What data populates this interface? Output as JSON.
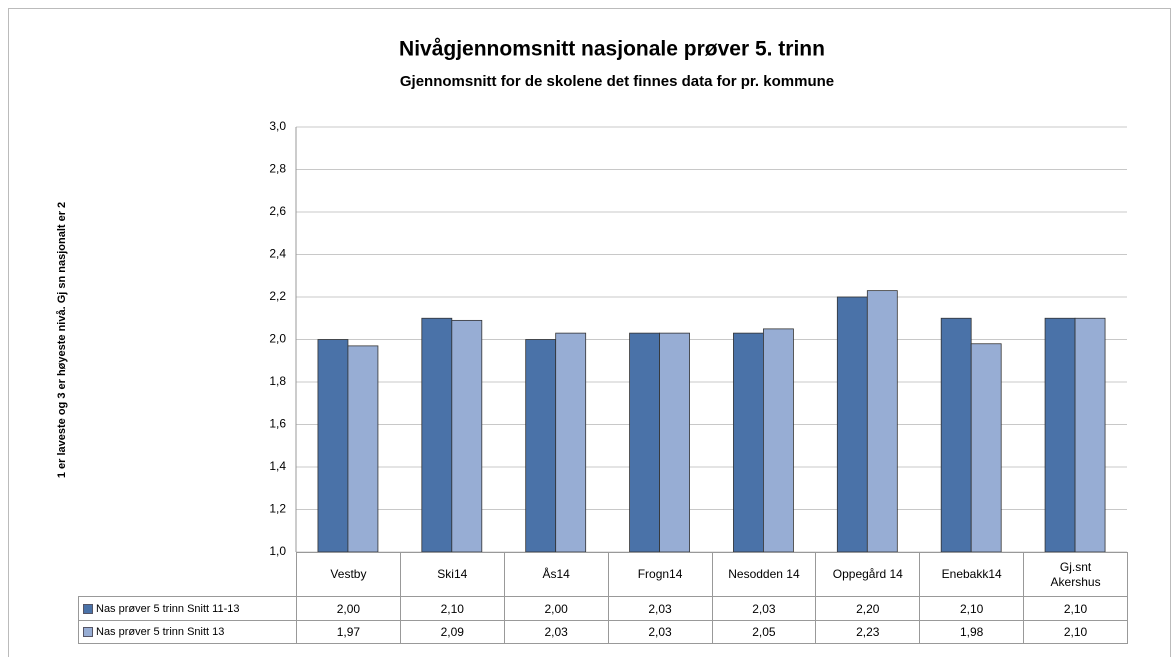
{
  "chart_data": {
    "type": "bar",
    "title": "Nivågjennomsnitt nasjonale prøver 5. trinn",
    "subtitle": "Gjennomsnitt for de skolene det finnes data for pr. kommune",
    "y_label": "1 er laveste og 3 er høyeste  nivå. Gj sn nasjonalt  er 2",
    "categories": [
      "Vestby",
      "Ski14",
      "Ås14",
      "Frogn14",
      "Nesodden 14",
      "Oppegård 14",
      "Enebakk14",
      "Gj.snt Akershus"
    ],
    "series": [
      {
        "name": "Nas prøver 5 trinn Snitt 11-13",
        "color": "#4a72a8",
        "values": [
          2.0,
          2.1,
          2.0,
          2.03,
          2.03,
          2.2,
          2.1,
          2.1
        ],
        "value_labels": [
          "2,00",
          "2,10",
          "2,00",
          "2,03",
          "2,03",
          "2,20",
          "2,10",
          "2,10"
        ]
      },
      {
        "name": "Nas prøver 5 trinn Snitt 13",
        "color": "#97add4",
        "values": [
          1.97,
          2.09,
          2.03,
          2.03,
          2.05,
          2.23,
          1.98,
          2.1
        ],
        "value_labels": [
          "1,97",
          "2,09",
          "2,03",
          "2,03",
          "2,05",
          "2,23",
          "1,98",
          "2,10"
        ]
      }
    ],
    "ylim": [
      1.0,
      3.0
    ],
    "yticks": [
      {
        "value": 1.0,
        "label": "1,0"
      },
      {
        "value": 1.2,
        "label": "1,2"
      },
      {
        "value": 1.4,
        "label": "1,4"
      },
      {
        "value": 1.6,
        "label": "1,6"
      },
      {
        "value": 1.8,
        "label": "1,8"
      },
      {
        "value": 2.0,
        "label": "2,0"
      },
      {
        "value": 2.2,
        "label": "2,2"
      },
      {
        "value": 2.4,
        "label": "2,4"
      },
      {
        "value": 2.6,
        "label": "2,6"
      },
      {
        "value": 2.8,
        "label": "2,8"
      },
      {
        "value": 3.0,
        "label": "3,0"
      }
    ],
    "grid": true
  }
}
